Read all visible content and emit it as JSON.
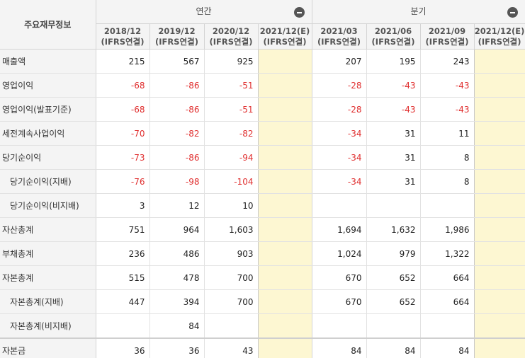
{
  "table": {
    "corner_label": "주요재무정보",
    "groups": {
      "annual": "연간",
      "quarterly": "분기"
    },
    "columns": [
      {
        "period": "2018/12",
        "basis": "(IFRS연결)"
      },
      {
        "period": "2019/12",
        "basis": "(IFRS연결)"
      },
      {
        "period": "2020/12",
        "basis": "(IFRS연결)"
      },
      {
        "period": "2021/12(E)",
        "basis": "(IFRS연결)"
      },
      {
        "period": "2021/03",
        "basis": "(IFRS연결)"
      },
      {
        "period": "2021/06",
        "basis": "(IFRS연결)"
      },
      {
        "period": "2021/09",
        "basis": "(IFRS연결)"
      },
      {
        "period": "2021/12(E)",
        "basis": "(IFRS연결)"
      }
    ],
    "rows": [
      {
        "label": "매출액",
        "values": [
          "215",
          "567",
          "925",
          "",
          "207",
          "195",
          "243",
          ""
        ]
      },
      {
        "label": "영업이익",
        "values": [
          "-68",
          "-86",
          "-51",
          "",
          "-28",
          "-43",
          "-43",
          ""
        ]
      },
      {
        "label": "영업이익(발표기준)",
        "values": [
          "-68",
          "-86",
          "-51",
          "",
          "-28",
          "-43",
          "-43",
          ""
        ]
      },
      {
        "label": "세전계속사업이익",
        "values": [
          "-70",
          "-82",
          "-82",
          "",
          "-34",
          "31",
          "11",
          ""
        ]
      },
      {
        "label": "당기순이익",
        "values": [
          "-73",
          "-86",
          "-94",
          "",
          "-34",
          "31",
          "8",
          ""
        ]
      },
      {
        "label": "당기순이익(지배)",
        "values": [
          "-76",
          "-98",
          "-104",
          "",
          "-34",
          "31",
          "8",
          ""
        ]
      },
      {
        "label": "당기순이익(비지배)",
        "values": [
          "3",
          "12",
          "10",
          "",
          "",
          "",
          "",
          ""
        ]
      },
      {
        "label": "자산총계",
        "values": [
          "751",
          "964",
          "1,603",
          "",
          "1,694",
          "1,632",
          "1,986",
          ""
        ]
      },
      {
        "label": "부채총계",
        "values": [
          "236",
          "486",
          "903",
          "",
          "1,024",
          "979",
          "1,322",
          ""
        ]
      },
      {
        "label": "자본총계",
        "values": [
          "515",
          "478",
          "700",
          "",
          "670",
          "652",
          "664",
          ""
        ]
      },
      {
        "label": "자본총계(지배)",
        "values": [
          "447",
          "394",
          "700",
          "",
          "670",
          "652",
          "664",
          ""
        ]
      },
      {
        "label": "자본총계(비지배)",
        "values": [
          "",
          "84",
          "",
          "",
          "",
          "",
          "",
          ""
        ]
      },
      {
        "label": "자본금",
        "values": [
          "36",
          "36",
          "43",
          "",
          "84",
          "84",
          "84",
          ""
        ]
      }
    ],
    "indented_rows": [
      5,
      6,
      10,
      11
    ],
    "estimate_columns": [
      3,
      7
    ],
    "negative_color": "#e03030",
    "estimate_bg": "#fdf7d2"
  }
}
